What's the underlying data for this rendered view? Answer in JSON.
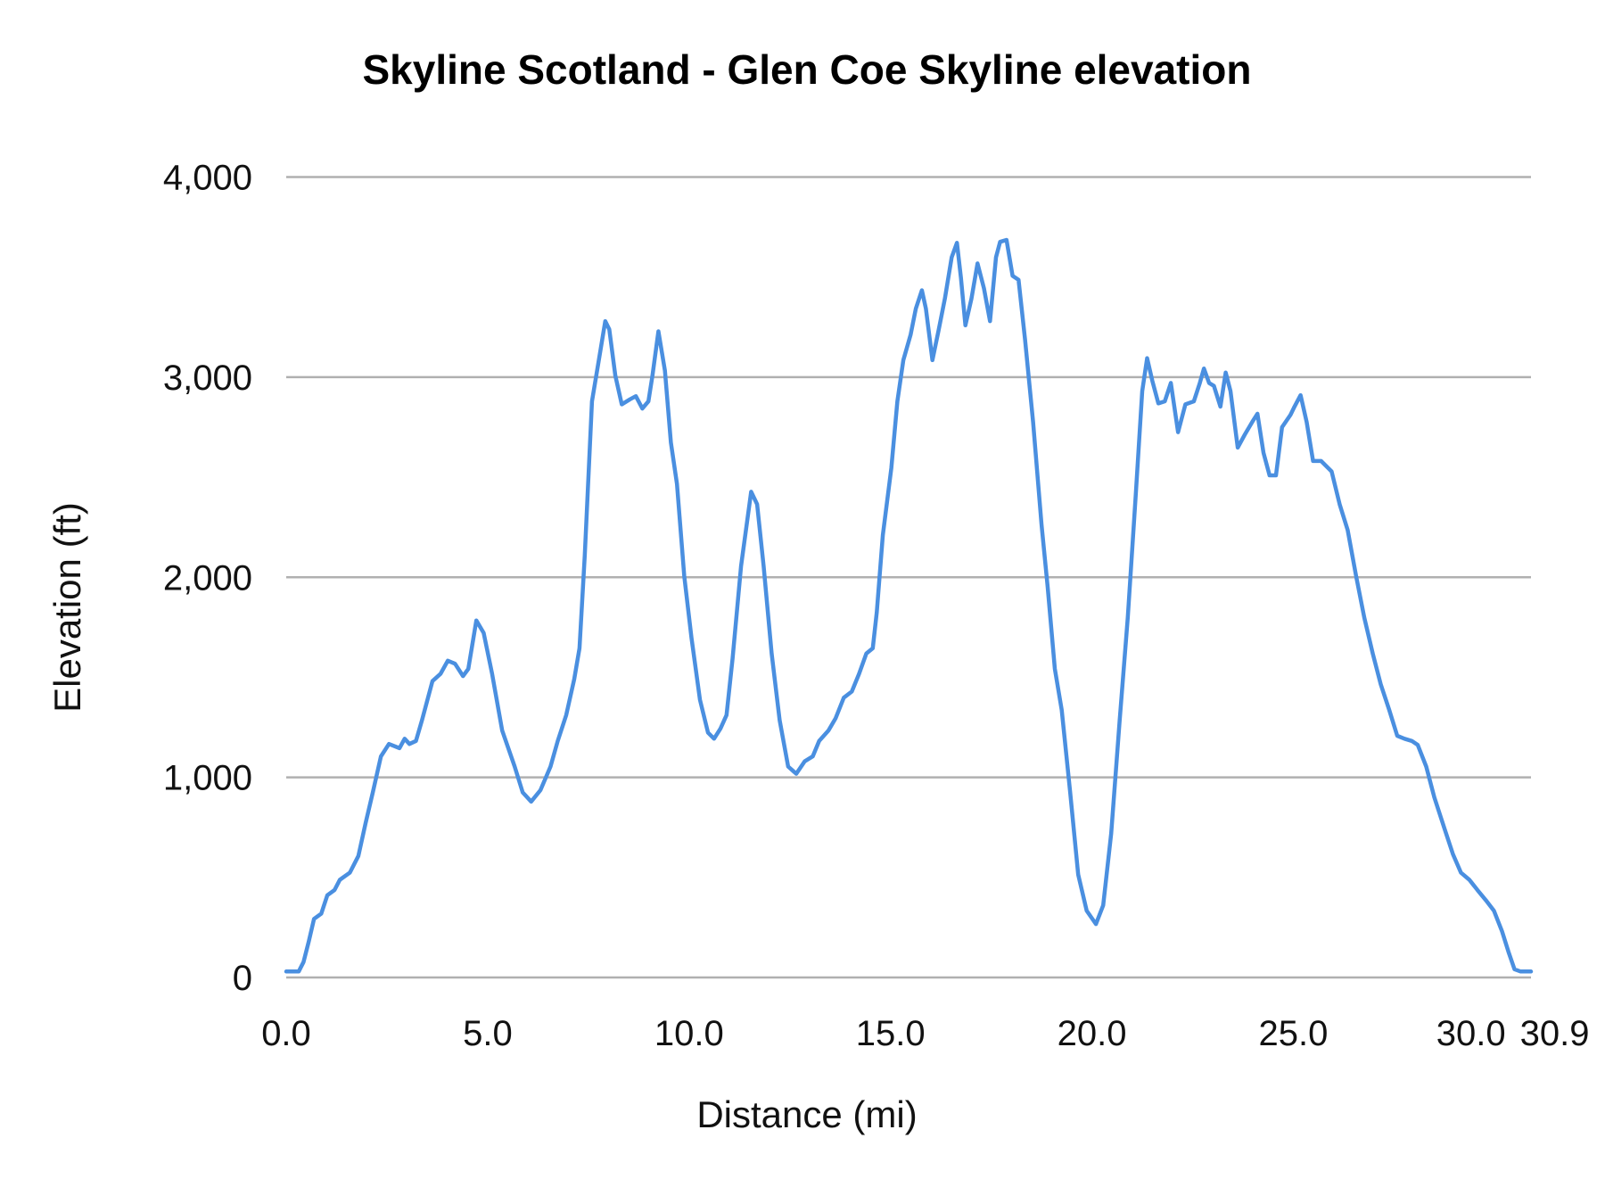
{
  "chart_data": {
    "type": "line",
    "title": "Skyline Scotland - Glen Coe Skyline elevation",
    "xlabel": "Distance (mi)",
    "ylabel": "Elevation (ft)",
    "xlim": [
      0,
      30.9
    ],
    "ylim": [
      0,
      4000
    ],
    "x_ticks": [
      "0.0",
      "5.0",
      "10.0",
      "15.0",
      "20.0",
      "25.0",
      "30.0",
      "30.9"
    ],
    "x_tick_values": [
      0,
      5,
      10,
      15,
      20,
      25,
      30,
      30.9
    ],
    "y_ticks": [
      "0",
      "1,000",
      "2,000",
      "3,000",
      "4,000"
    ],
    "y_tick_values": [
      0,
      1000,
      2000,
      3000,
      4000
    ],
    "grid": "horizontal",
    "line_color": "#4a8fe0",
    "grid_color": "#b0b0b0",
    "series": [
      {
        "x": [
          0,
          0.31,
          0.43,
          0.56,
          0.69,
          0.87,
          1.02,
          1.2,
          1.33,
          1.58,
          1.79,
          1.97,
          2.15,
          2.35,
          2.55,
          2.81,
          2.94,
          3.06,
          3.22,
          3.37,
          3.63,
          3.83,
          4.01,
          4.19,
          4.39,
          4.52,
          4.72,
          4.9,
          5.11,
          5.36,
          5.67,
          5.87,
          6.08,
          6.31,
          6.56,
          6.74,
          6.95,
          7.15,
          7.28,
          7.41,
          7.59,
          7.76,
          7.92,
          8.02,
          8.17,
          8.33,
          8.53,
          8.68,
          8.84,
          8.99,
          9.09,
          9.24,
          9.4,
          9.55,
          9.7,
          9.88,
          10.06,
          10.27,
          10.47,
          10.62,
          10.78,
          10.93,
          11.08,
          11.29,
          11.54,
          11.69,
          11.85,
          12.05,
          12.25,
          12.46,
          12.66,
          12.87,
          13.07,
          13.23,
          13.46,
          13.64,
          13.84,
          14.04,
          14.22,
          14.4,
          14.56,
          14.66,
          14.81,
          15.02,
          15.17,
          15.32,
          15.5,
          15.63,
          15.78,
          15.88,
          16.04,
          16.19,
          16.35,
          16.52,
          16.65,
          16.75,
          16.86,
          17.01,
          17.16,
          17.32,
          17.47,
          17.62,
          17.72,
          17.88,
          18.03,
          18.18,
          18.34,
          18.54,
          18.75,
          18.9,
          19.08,
          19.25,
          19.46,
          19.66,
          19.87,
          20.1,
          20.28,
          20.48,
          20.69,
          20.89,
          21.09,
          21.25,
          21.37,
          21.5,
          21.65,
          21.81,
          21.96,
          22.14,
          22.32,
          22.53,
          22.68,
          22.78,
          22.91,
          23.03,
          23.19,
          23.32,
          23.44,
          23.62,
          23.8,
          23.98,
          24.11,
          24.26,
          24.41,
          24.57,
          24.72,
          24.93,
          25.03,
          25.18,
          25.33,
          25.49,
          25.69,
          25.95,
          26.15,
          26.35,
          26.56,
          26.76,
          26.97,
          27.17,
          27.38,
          27.58,
          27.76,
          27.94,
          28.09,
          28.3,
          28.5,
          28.75,
          28.96,
          29.16,
          29.37,
          29.57,
          29.78,
          29.98,
          30.18,
          30.34,
          30.49,
          30.64,
          30.9
        ],
        "y": [
          30,
          30,
          77,
          180,
          293,
          319,
          411,
          437,
          488,
          524,
          607,
          771,
          925,
          1105,
          1167,
          1146,
          1193,
          1167,
          1182,
          1285,
          1481,
          1517,
          1583,
          1568,
          1506,
          1542,
          1784,
          1722,
          1517,
          1234,
          1054,
          925,
          879,
          936,
          1054,
          1182,
          1311,
          1491,
          1645,
          2108,
          2879,
          3085,
          3280,
          3239,
          3007,
          2864,
          2889,
          2905,
          2843,
          2879,
          3007,
          3229,
          3033,
          2673,
          2467,
          2005,
          1697,
          1388,
          1224,
          1193,
          1244,
          1311,
          1594,
          2056,
          2427,
          2365,
          2056,
          1619,
          1285,
          1054,
          1018,
          1080,
          1105,
          1182,
          1234,
          1296,
          1398,
          1429,
          1517,
          1619,
          1645,
          1825,
          2211,
          2545,
          2879,
          3085,
          3213,
          3342,
          3434,
          3342,
          3085,
          3229,
          3393,
          3599,
          3671,
          3496,
          3259,
          3393,
          3568,
          3444,
          3280,
          3599,
          3676,
          3686,
          3506,
          3486,
          3187,
          2776,
          2262,
          1954,
          1542,
          1337,
          925,
          514,
          334,
          267,
          360,
          720,
          1285,
          1799,
          2416,
          2930,
          3095,
          2982,
          2869,
          2879,
          2971,
          2725,
          2864,
          2879,
          2971,
          3043,
          2971,
          2956,
          2853,
          3023,
          2930,
          2648,
          2714,
          2776,
          2817,
          2622,
          2509,
          2509,
          2750,
          2812,
          2853,
          2910,
          2776,
          2581,
          2581,
          2529,
          2365,
          2236,
          2005,
          1799,
          1619,
          1465,
          1337,
          1208,
          1193,
          1182,
          1162,
          1054,
          900,
          745,
          617,
          524,
          488,
          437,
          386,
          334,
          231,
          129,
          41,
          30,
          30
        ]
      }
    ]
  }
}
